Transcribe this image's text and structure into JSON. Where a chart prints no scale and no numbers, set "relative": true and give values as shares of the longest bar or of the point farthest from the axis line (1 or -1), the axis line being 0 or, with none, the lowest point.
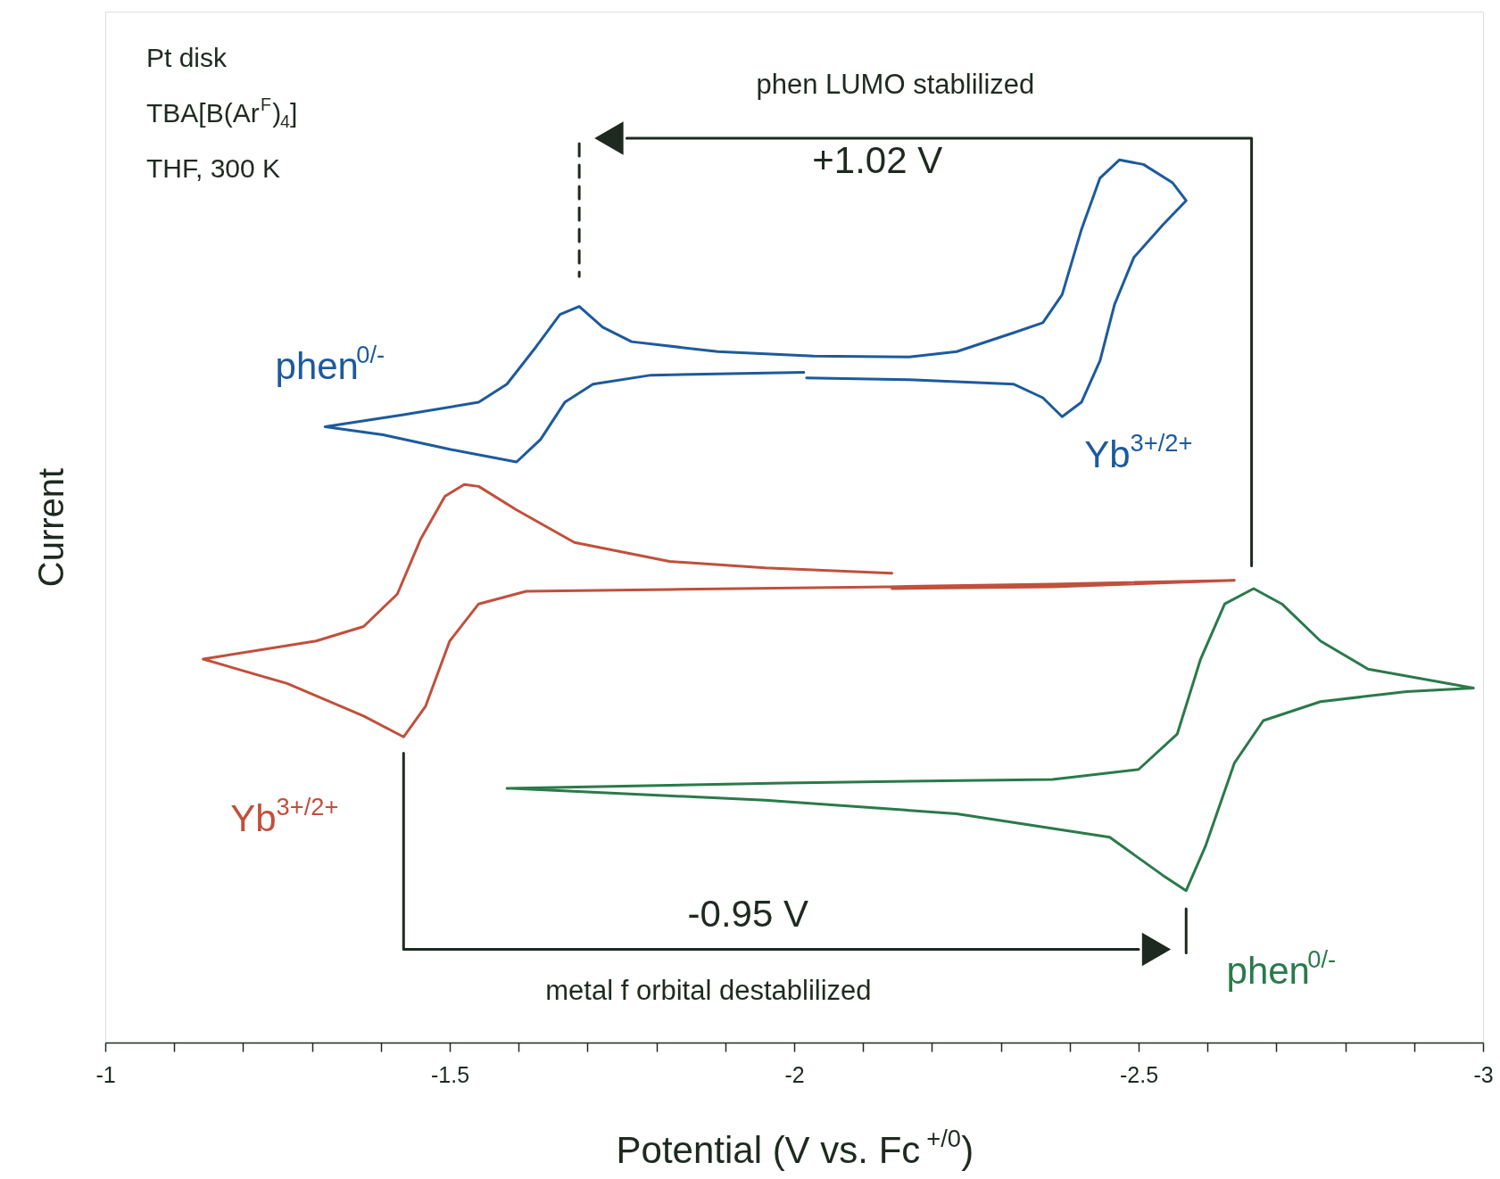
{
  "chart_data": {
    "type": "line",
    "relative": true,
    "xlabel": "Potential (V vs. Fc$^{+/0}$)",
    "ylabel": "Current",
    "xlim": [
      -1,
      -3
    ],
    "xticks": [
      -1,
      {
        "value": -1.1,
        "label": null
      },
      {
        "value": -1.2,
        "label": null
      },
      {
        "value": -1.3,
        "label": null
      },
      {
        "value": -1.4,
        "label": null
      },
      -1.5,
      {
        "value": -1.6,
        "label": null
      },
      {
        "value": -1.7,
        "label": null
      },
      {
        "value": -1.8,
        "label": null
      },
      {
        "value": -1.9,
        "label": null
      },
      -2,
      {
        "value": -2.1,
        "label": null
      },
      {
        "value": -2.2,
        "label": null
      },
      {
        "value": -2.3,
        "label": null
      },
      {
        "value": -2.4,
        "label": null
      },
      -2.5,
      {
        "value": -2.6,
        "label": null
      },
      {
        "value": -2.7,
        "label": null
      },
      {
        "value": -2.8,
        "label": null
      },
      {
        "value": -2.9,
        "label": null
      },
      -3
    ],
    "series": [
      {
        "color": "#1d5a9c",
        "x": [
          -2.018,
          -2.167,
          -2.319,
          -2.361,
          -2.389,
          -2.417,
          -2.444,
          -2.465,
          -2.493,
          -2.535,
          -2.569,
          -2.549,
          -2.507,
          -2.472,
          -2.444,
          -2.417,
          -2.389,
          -2.361,
          -2.319,
          -2.236,
          -2.167,
          -2.028,
          -1.889,
          -1.764,
          -1.722,
          -1.688,
          -1.66,
          -1.625,
          -1.583,
          -1.542,
          -1.431,
          -1.319,
          -1.403,
          -1.5,
          -1.597,
          -1.632,
          -1.667,
          -1.708,
          -1.792,
          -2.014
        ],
        "values": [
          0.735,
          0.733,
          0.728,
          0.713,
          0.692,
          0.708,
          0.754,
          0.816,
          0.868,
          0.904,
          0.931,
          0.951,
          0.971,
          0.976,
          0.956,
          0.899,
          0.827,
          0.796,
          0.785,
          0.764,
          0.758,
          0.759,
          0.764,
          0.775,
          0.791,
          0.814,
          0.805,
          0.769,
          0.728,
          0.708,
          0.694,
          0.681,
          0.672,
          0.656,
          0.642,
          0.667,
          0.708,
          0.728,
          0.738,
          0.741
        ]
      },
      {
        "color": "#c0503c",
        "x": [
          -2.142,
          -1.958,
          -1.819,
          -1.681,
          -1.597,
          -1.542,
          -1.521,
          -1.493,
          -1.458,
          -1.424,
          -1.375,
          -1.306,
          -1.142,
          -1.264,
          -1.375,
          -1.433,
          -1.465,
          -1.5,
          -1.542,
          -1.611,
          -1.819,
          -2.139,
          -2.375,
          -2.639,
          -2.375,
          -2.142
        ],
        "values": [
          0.519,
          0.525,
          0.532,
          0.553,
          0.589,
          0.615,
          0.617,
          0.604,
          0.557,
          0.496,
          0.46,
          0.444,
          0.424,
          0.397,
          0.361,
          0.338,
          0.372,
          0.444,
          0.485,
          0.499,
          0.501,
          0.504,
          0.507,
          0.511,
          0.504,
          0.502
        ]
      },
      {
        "color": "#2a7a4a",
        "x": [
          -1.583,
          -1.986,
          -2.375,
          -2.5,
          -2.556,
          -2.59,
          -2.625,
          -2.667,
          -2.708,
          -2.764,
          -2.833,
          -2.986,
          -2.889,
          -2.764,
          -2.681,
          -2.639,
          -2.597,
          -2.569,
          -2.535,
          -2.458,
          -2.236,
          -1.958,
          -1.59
        ],
        "values": [
          0.281,
          0.287,
          0.291,
          0.302,
          0.341,
          0.424,
          0.485,
          0.502,
          0.485,
          0.444,
          0.413,
          0.392,
          0.388,
          0.377,
          0.356,
          0.309,
          0.217,
          0.168,
          0.185,
          0.227,
          0.253,
          0.268,
          0.281
        ]
      },
      {
        "type": "line",
        "color": "#1e2a20",
        "x": [
          -2.664,
          -2.664,
          -1.757
        ],
        "values": [
          0.527,
          1.0,
          1.0
        ]
      },
      {
        "type": "line",
        "color": "#1e2a20",
        "line_style": "dashed",
        "x": [
          -1.688,
          -1.688
        ],
        "values": [
          0.994,
          0.847
        ]
      },
      {
        "type": "line",
        "color": "#1e2a20",
        "x": [
          -1.433,
          -1.433,
          -2.5
        ],
        "values": [
          0.32,
          0.103,
          0.103
        ]
      },
      {
        "type": "line",
        "color": "#1e2a20",
        "x": [
          -2.569,
          -2.569
        ],
        "values": [
          0.148,
          0.099
        ]
      }
    ],
    "annotations": [
      "Pt disk",
      "TBA[B(Ar$^{F}$)$_{4}$]",
      "THF, 300 K",
      "phen LUMO stablilized",
      "+1.02 V",
      "phen$^{0/-}$",
      "Yb$^{3+/2+}$",
      "Yb$^{3+/2+}$",
      "-0.95 V",
      "metal f orbital destablilized",
      "phen$^{0/-}$"
    ]
  }
}
